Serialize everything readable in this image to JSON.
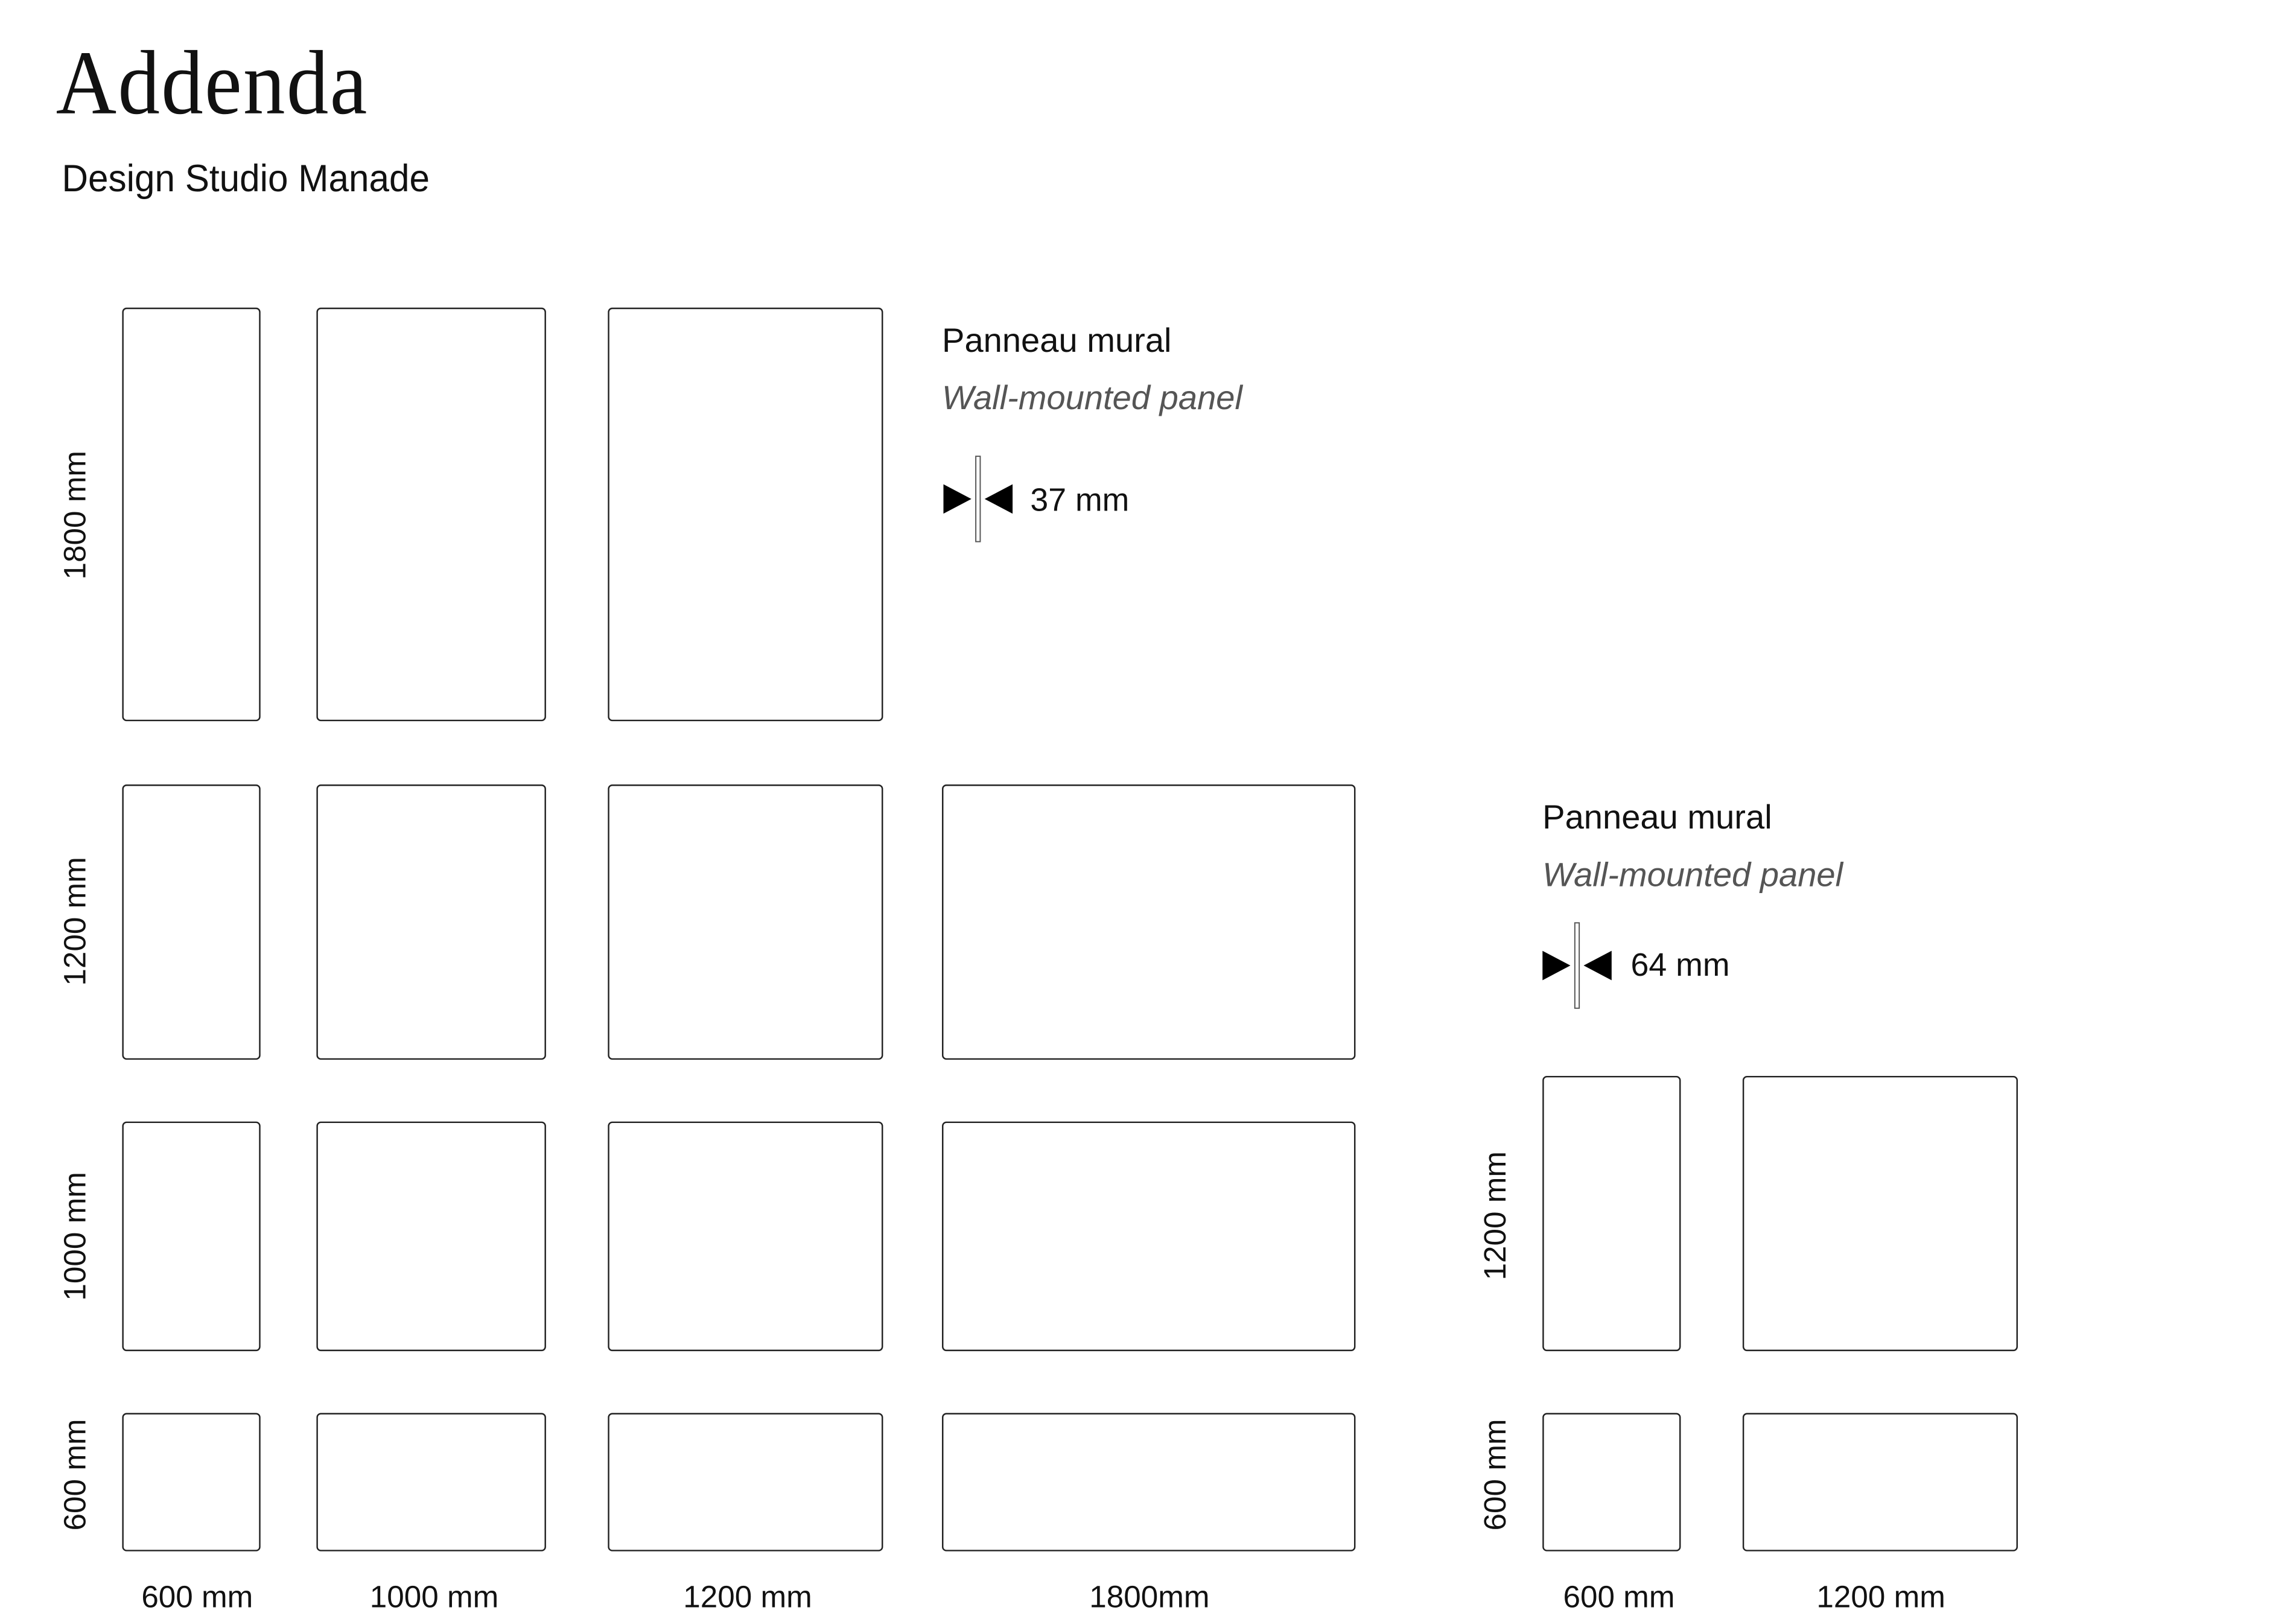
{
  "header": {
    "title": "Addenda",
    "subtitle": "Design Studio Manade"
  },
  "left_group": {
    "name": "Panneau mural",
    "name_en": "Wall-mounted panel",
    "thickness": "37 mm",
    "row_labels": [
      "1800 mm",
      "1200 mm",
      "1000 mm",
      "600 mm"
    ],
    "col_labels": [
      "600 mm",
      "1000 mm",
      "1200 mm",
      "1800mm"
    ]
  },
  "right_group": {
    "name": "Panneau mural",
    "name_en": "Wall-mounted panel",
    "thickness": "64 mm",
    "row_labels": [
      "1200 mm",
      "600 mm"
    ],
    "col_labels": [
      "600 mm",
      "1200 mm"
    ]
  },
  "icons": {
    "thickness": "thickness-arrows-icon"
  }
}
